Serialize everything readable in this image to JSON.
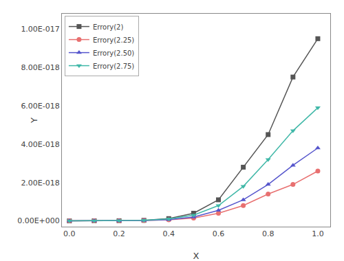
{
  "chart_data": {
    "type": "line",
    "xlabel": "X",
    "ylabel": "Y",
    "x": [
      0.0,
      0.1,
      0.2,
      0.3,
      0.4,
      0.5,
      0.6,
      0.7,
      0.8,
      0.9,
      1.0
    ],
    "series": [
      {
        "name": "Errory(2)",
        "color": "#555555",
        "marker": "square",
        "line_style": "solid",
        "values": [
          0.0,
          5e-21,
          1e-20,
          3e-20,
          1.2e-19,
          4e-19,
          1.1e-18,
          2.8e-18,
          4.5e-18,
          7.5e-18,
          9.5e-18
        ]
      },
      {
        "name": "Errory(2.25)",
        "color": "#e87070",
        "marker": "circle",
        "line_style": "solid",
        "values": [
          0.0,
          5e-21,
          8e-21,
          2e-20,
          6e-20,
          1.5e-19,
          4e-19,
          8e-19,
          1.4e-18,
          1.9e-18,
          2.6e-18
        ]
      },
      {
        "name": "Errory(2.50)",
        "color": "#5555cc",
        "marker": "triangle-up",
        "line_style": "solid",
        "values": [
          0.0,
          5e-21,
          8e-21,
          2e-20,
          7e-20,
          2e-19,
          5.5e-19,
          1.1e-18,
          1.9e-18,
          2.9e-18,
          3.8e-18
        ]
      },
      {
        "name": "Errory(2.75)",
        "color": "#40b8a8",
        "marker": "triangle-down",
        "line_style": "solid",
        "values": [
          0.0,
          5e-21,
          1e-20,
          3e-20,
          1e-19,
          3e-19,
          8e-19,
          1.8e-18,
          3.2e-18,
          4.7e-18,
          5.9e-18
        ]
      }
    ],
    "xlim": [
      -0.03,
      1.05
    ],
    "xticks": [
      {
        "value": 0.0,
        "label": "0.0"
      },
      0.2,
      0.4,
      0.6,
      0.8,
      {
        "value": 1.0,
        "label": "1.0"
      }
    ],
    "ylim": [
      -3e-19,
      1.08e-17
    ],
    "yticks": [
      {
        "value": 0.0,
        "label": "0.00E+000"
      },
      {
        "value": 2e-18,
        "label": "2.00E-018"
      },
      {
        "value": 4e-18,
        "label": "4.00E-018"
      },
      {
        "value": 6e-18,
        "label": "6.00E-018"
      },
      {
        "value": 8e-18,
        "label": "8.00E-018"
      },
      {
        "value": 1e-17,
        "label": "1.00E-017"
      }
    ],
    "grid": false,
    "legend": "upper left"
  }
}
